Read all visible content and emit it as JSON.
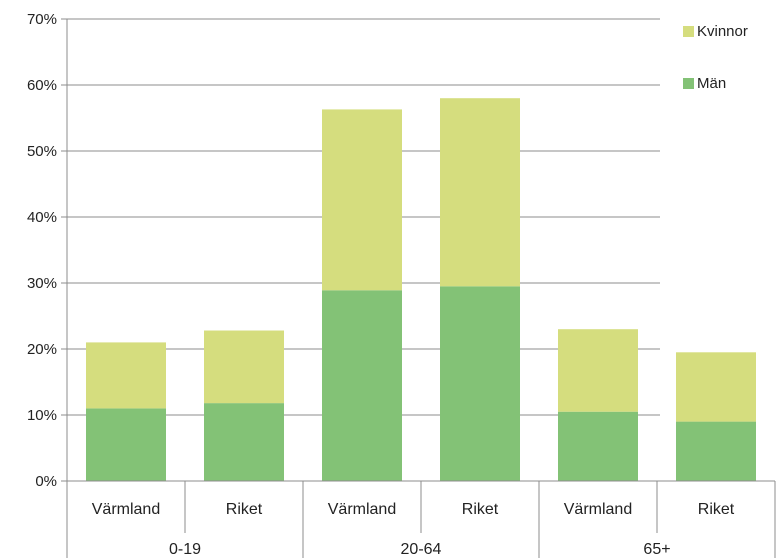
{
  "chart_data": {
    "type": "bar",
    "stacked": true,
    "title": "",
    "xlabel": "",
    "ylabel": "",
    "ylim": [
      0,
      70
    ],
    "y_tick_values": [
      0,
      10,
      20,
      30,
      40,
      50,
      60,
      70
    ],
    "y_tick_labels": [
      "0%",
      "10%",
      "20%",
      "30%",
      "40%",
      "50%",
      "60%",
      "70%"
    ],
    "grid": true,
    "legend_position": "top-right",
    "groups": [
      {
        "label": "0-19",
        "categories": [
          "Värmland",
          "Riket"
        ]
      },
      {
        "label": "20-64",
        "categories": [
          "Värmland",
          "Riket"
        ]
      },
      {
        "label": "65+",
        "categories": [
          "Värmland",
          "Riket"
        ]
      }
    ],
    "categories": [
      "Värmland",
      "Riket",
      "Värmland",
      "Riket",
      "Värmland",
      "Riket"
    ],
    "series": [
      {
        "name": "Män",
        "color": "#83c276",
        "values": [
          11,
          11.8,
          28.9,
          29.5,
          10.5,
          9
        ]
      },
      {
        "name": "Kvinnor",
        "color": "#d5dd7e",
        "values": [
          10,
          11,
          27.4,
          28.5,
          12.5,
          10.5
        ]
      }
    ],
    "legend_order": [
      "Kvinnor",
      "Män"
    ]
  }
}
